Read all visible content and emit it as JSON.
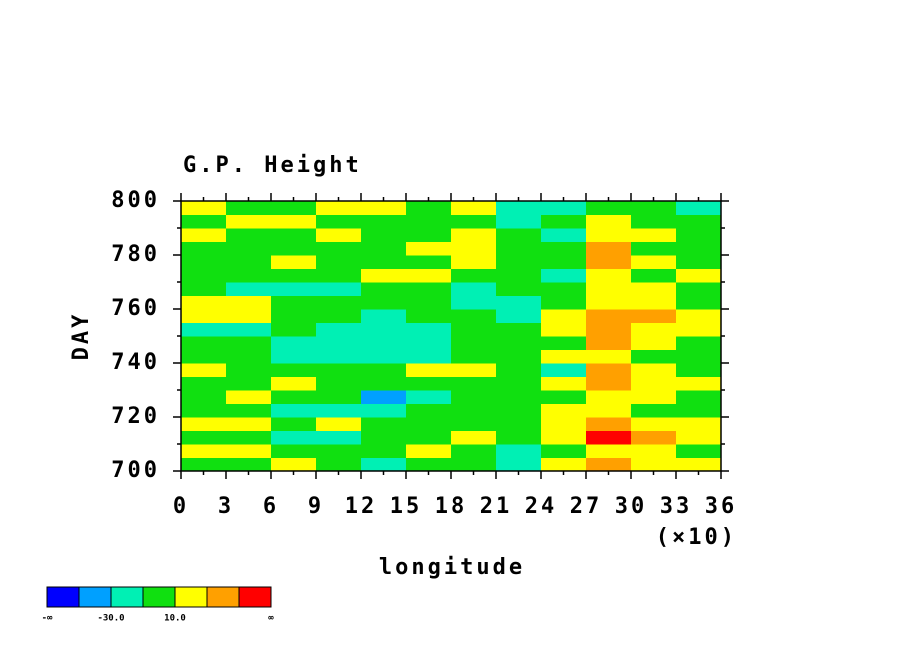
{
  "chart_data": {
    "type": "heatmap",
    "title": "G.P. Height",
    "x_label": "longitude",
    "y_label": "DAY",
    "x_multiplier": "(×10)",
    "xlim": [
      0,
      360
    ],
    "ylim": [
      700,
      800
    ],
    "xticks": [
      {
        "value": 0,
        "label": "0"
      },
      {
        "value": 30,
        "label": "3"
      },
      {
        "value": 60,
        "label": "6"
      },
      {
        "value": 90,
        "label": "9"
      },
      {
        "value": 120,
        "label": "12"
      },
      {
        "value": 150,
        "label": "15"
      },
      {
        "value": 180,
        "label": "18"
      },
      {
        "value": 210,
        "label": "21"
      },
      {
        "value": 240,
        "label": "24"
      },
      {
        "value": 270,
        "label": "27"
      },
      {
        "value": 300,
        "label": "30"
      },
      {
        "value": 330,
        "label": "33"
      },
      {
        "value": 360,
        "label": "36"
      }
    ],
    "yticks": [
      700,
      720,
      740,
      760,
      780,
      800
    ],
    "x": [
      15,
      45,
      75,
      105,
      135,
      165,
      195,
      225,
      255,
      285,
      315,
      345
    ],
    "y": [
      702.5,
      707.5,
      712.5,
      717.5,
      722.5,
      727.5,
      732.5,
      737.5,
      742.5,
      747.5,
      752.5,
      757.5,
      762.5,
      767.5,
      772.5,
      777.5,
      782.5,
      787.5,
      792.5,
      797.5
    ],
    "z": [
      [
        5,
        0,
        12,
        -5,
        -12,
        0,
        5,
        -15,
        15,
        35,
        20,
        12
      ],
      [
        12,
        15,
        5,
        0,
        -8,
        22,
        0,
        -12,
        8,
        25,
        15,
        5
      ],
      [
        0,
        -5,
        -12,
        -15,
        -8,
        5,
        12,
        0,
        20,
        55,
        30,
        15
      ],
      [
        15,
        18,
        5,
        12,
        0,
        8,
        -5,
        5,
        25,
        35,
        22,
        18
      ],
      [
        -5,
        0,
        -12,
        -20,
        -15,
        0,
        5,
        0,
        12,
        20,
        5,
        0
      ],
      [
        8,
        12,
        5,
        -8,
        -35,
        -12,
        0,
        5,
        0,
        15,
        25,
        5
      ],
      [
        0,
        5,
        15,
        8,
        0,
        -5,
        8,
        0,
        20,
        40,
        12,
        15
      ],
      [
        12,
        0,
        5,
        0,
        5,
        12,
        20,
        0,
        -15,
        30,
        15,
        8
      ],
      [
        -8,
        -5,
        -15,
        -12,
        -20,
        -25,
        -5,
        0,
        12,
        25,
        0,
        5
      ],
      [
        0,
        5,
        -12,
        -18,
        -20,
        -22,
        5,
        0,
        8,
        30,
        15,
        0
      ],
      [
        -12,
        -15,
        -8,
        -20,
        -28,
        -15,
        0,
        -5,
        20,
        40,
        25,
        15
      ],
      [
        15,
        18,
        0,
        -5,
        -12,
        5,
        -5,
        -15,
        20,
        35,
        30,
        20
      ],
      [
        22,
        12,
        0,
        5,
        -5,
        -8,
        -12,
        -18,
        0,
        15,
        12,
        5
      ],
      [
        0,
        -15,
        -20,
        -12,
        5,
        0,
        -12,
        -8,
        5,
        20,
        10,
        0
      ],
      [
        8,
        5,
        0,
        -5,
        12,
        15,
        5,
        0,
        -12,
        18,
        5,
        12
      ],
      [
        5,
        0,
        12,
        8,
        0,
        -5,
        15,
        0,
        5,
        35,
        12,
        5
      ],
      [
        -5,
        0,
        -8,
        0,
        5,
        12,
        25,
        5,
        0,
        30,
        8,
        -5
      ],
      [
        15,
        5,
        0,
        12,
        0,
        -5,
        20,
        0,
        -12,
        25,
        15,
        0
      ],
      [
        0,
        12,
        15,
        5,
        -5,
        0,
        8,
        -12,
        -5,
        20,
        0,
        8
      ],
      [
        12,
        8,
        5,
        15,
        10,
        -5,
        25,
        -15,
        -20,
        0,
        -8,
        -12
      ]
    ],
    "colorbar": {
      "levels": [
        -50,
        -30,
        -10,
        10,
        30,
        50
      ],
      "colors": [
        "#0000fe",
        "#00a0ff",
        "#00f0b4",
        "#10e010",
        "#ffff00",
        "#ffa000",
        "#ff0000"
      ],
      "low_label": "-∞",
      "high_label": "∞",
      "level_labels": [
        {
          "value": -30,
          "label": "-30.0"
        },
        {
          "value": 10,
          "label": "10.0"
        }
      ]
    }
  }
}
